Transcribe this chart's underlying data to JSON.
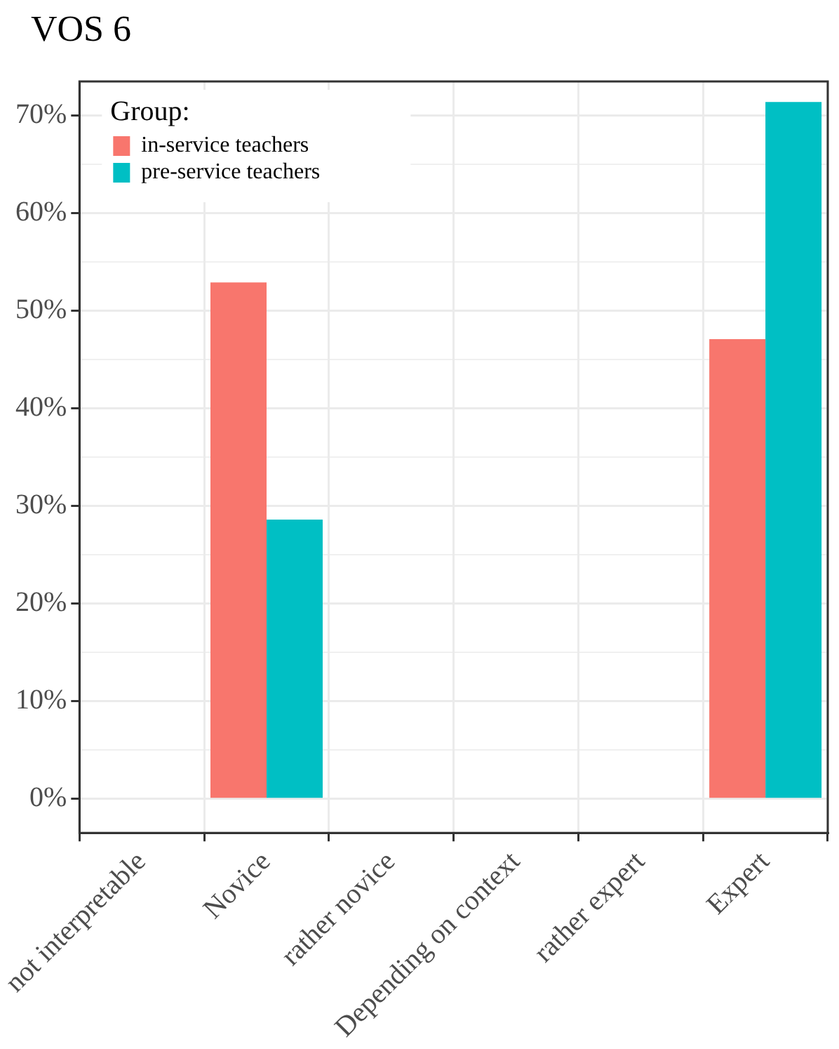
{
  "chart_data": {
    "type": "bar",
    "title": "VOS 6",
    "legend_title": "Group:",
    "categories": [
      "not interpretable",
      "Novice",
      "rather novice",
      "Depending on context",
      "rather expert",
      "Expert"
    ],
    "series": [
      {
        "name": "in-service teachers",
        "color": "#f8766d",
        "values": [
          0,
          52.9,
          0,
          0,
          0,
          47.1
        ]
      },
      {
        "name": "pre-service teachers",
        "color": "#00bfc4",
        "values": [
          0,
          28.6,
          0,
          0,
          0,
          71.4
        ]
      }
    ],
    "ylim": [
      -3.5,
      73.5
    ],
    "yticks": [
      {
        "value": 0,
        "label": "0%"
      },
      {
        "value": 5,
        "label": null
      },
      {
        "value": 10,
        "label": "10%"
      },
      {
        "value": 15,
        "label": null
      },
      {
        "value": 20,
        "label": "20%"
      },
      {
        "value": 25,
        "label": null
      },
      {
        "value": 30,
        "label": "30%"
      },
      {
        "value": 35,
        "label": null
      },
      {
        "value": 40,
        "label": "40%"
      },
      {
        "value": 45,
        "label": null
      },
      {
        "value": 50,
        "label": "50%"
      },
      {
        "value": 55,
        "label": null
      },
      {
        "value": 60,
        "label": "60%"
      },
      {
        "value": 65,
        "label": null
      },
      {
        "value": 70,
        "label": "70%"
      }
    ],
    "grid": true,
    "legend": "top left"
  }
}
